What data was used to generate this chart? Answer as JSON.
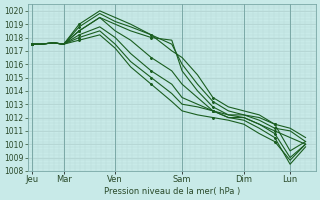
{
  "bg_color": "#c8eae8",
  "grid_major_color": "#a8c8c6",
  "grid_minor_color": "#b8d8d6",
  "line_color": "#1a5e20",
  "ylabel": "Pression niveau de la mer( hPa )",
  "ylim": [
    1008,
    1020.5
  ],
  "yticks": [
    1008,
    1009,
    1010,
    1011,
    1012,
    1013,
    1014,
    1015,
    1016,
    1017,
    1018,
    1019,
    1020
  ],
  "x_day_labels": [
    "Jeu",
    "Mar",
    "Ven",
    "Sam",
    "Dim",
    "Lun"
  ],
  "x_day_positions": [
    0.08,
    0.7,
    1.7,
    3.0,
    4.2,
    5.1
  ],
  "x_vline_positions": [
    0.08,
    0.7,
    1.7,
    3.0,
    4.2,
    5.1
  ],
  "xlim": [
    0.0,
    5.6
  ],
  "series": [
    {
      "x": [
        0.08,
        0.25,
        0.5,
        0.7,
        1.0,
        1.4,
        1.7,
        2.0,
        2.4,
        2.8,
        3.0,
        3.3,
        3.6,
        3.9,
        4.2,
        4.5,
        4.8,
        5.1,
        5.4
      ],
      "y": [
        1017.5,
        1017.5,
        1017.6,
        1017.5,
        1018.5,
        1019.5,
        1019.0,
        1018.5,
        1018.0,
        1017.8,
        1015.5,
        1014.0,
        1012.8,
        1012.2,
        1012.0,
        1011.5,
        1011.0,
        1010.5,
        1010.0
      ]
    },
    {
      "x": [
        0.08,
        0.25,
        0.5,
        0.7,
        1.0,
        1.4,
        1.7,
        2.0,
        2.4,
        2.8,
        3.0,
        3.3,
        3.6,
        3.9,
        4.2,
        4.5,
        4.8,
        5.1,
        5.4
      ],
      "y": [
        1017.5,
        1017.5,
        1017.6,
        1017.5,
        1018.8,
        1019.8,
        1019.2,
        1018.8,
        1018.2,
        1017.5,
        1016.0,
        1014.5,
        1013.2,
        1012.5,
        1012.2,
        1011.8,
        1011.2,
        1011.0,
        1010.2
      ]
    },
    {
      "x": [
        0.08,
        0.25,
        0.5,
        0.7,
        1.0,
        1.4,
        1.7,
        2.0,
        2.4,
        2.8,
        3.0,
        3.3,
        3.6,
        3.9,
        4.2,
        4.5,
        4.8,
        5.1,
        5.4
      ],
      "y": [
        1017.5,
        1017.5,
        1017.6,
        1017.5,
        1019.0,
        1020.0,
        1019.5,
        1019.0,
        1018.2,
        1017.0,
        1016.5,
        1015.2,
        1013.5,
        1012.8,
        1012.5,
        1012.2,
        1011.5,
        1011.2,
        1010.5
      ]
    },
    {
      "x": [
        0.08,
        0.25,
        0.5,
        0.7,
        1.0,
        1.4,
        1.7,
        2.0,
        2.4,
        2.8,
        3.0,
        3.3,
        3.6,
        3.9,
        4.2,
        4.5,
        4.8,
        5.1,
        5.4
      ],
      "y": [
        1017.5,
        1017.5,
        1017.6,
        1017.5,
        1018.5,
        1019.5,
        1018.5,
        1017.8,
        1016.5,
        1015.5,
        1014.5,
        1013.5,
        1012.5,
        1012.2,
        1012.2,
        1012.0,
        1011.5,
        1009.5,
        1010.2
      ]
    },
    {
      "x": [
        0.08,
        0.25,
        0.5,
        0.7,
        1.0,
        1.4,
        1.7,
        2.0,
        2.4,
        2.8,
        3.0,
        3.3,
        3.6,
        3.9,
        4.2,
        4.5,
        4.8,
        5.1,
        5.4
      ],
      "y": [
        1017.5,
        1017.5,
        1017.6,
        1017.5,
        1018.2,
        1018.8,
        1018.0,
        1016.8,
        1015.5,
        1014.5,
        1013.5,
        1013.0,
        1012.5,
        1012.0,
        1012.0,
        1011.5,
        1010.8,
        1009.0,
        1010.0
      ]
    },
    {
      "x": [
        0.08,
        0.25,
        0.5,
        0.7,
        1.0,
        1.4,
        1.7,
        2.0,
        2.4,
        2.8,
        3.0,
        3.3,
        3.6,
        3.9,
        4.2,
        4.5,
        4.8,
        5.1,
        5.4
      ],
      "y": [
        1017.5,
        1017.5,
        1017.6,
        1017.5,
        1018.0,
        1018.5,
        1017.5,
        1016.2,
        1015.0,
        1013.8,
        1013.0,
        1012.8,
        1012.5,
        1012.0,
        1011.8,
        1011.2,
        1010.5,
        1008.5,
        1009.8
      ]
    },
    {
      "x": [
        0.08,
        0.25,
        0.5,
        0.7,
        1.0,
        1.4,
        1.7,
        2.0,
        2.4,
        2.8,
        3.0,
        3.3,
        3.6,
        3.9,
        4.2,
        4.5,
        4.8,
        5.1,
        5.4
      ],
      "y": [
        1017.5,
        1017.5,
        1017.6,
        1017.5,
        1017.8,
        1018.2,
        1017.2,
        1015.8,
        1014.5,
        1013.2,
        1012.5,
        1012.2,
        1012.0,
        1011.8,
        1011.5,
        1010.8,
        1010.2,
        1008.8,
        1010.0
      ]
    }
  ]
}
